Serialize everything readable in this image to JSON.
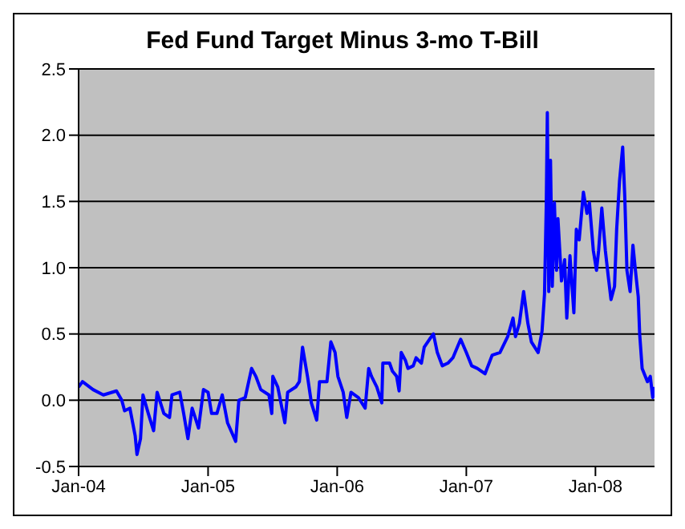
{
  "chart_data": {
    "type": "line",
    "title": "Fed Fund Target Minus 3-mo T-Bill",
    "x": [
      "2004-01-01",
      "2004-01-12",
      "2004-02-11",
      "2004-03-11",
      "2004-04-17",
      "2004-05-02",
      "2004-05-10",
      "2004-05-25",
      "2004-06-09",
      "2004-06-14",
      "2004-06-24",
      "2004-07-01",
      "2004-07-16",
      "2004-07-31",
      "2004-08-10",
      "2004-08-29",
      "2004-09-14",
      "2004-09-21",
      "2004-10-13",
      "2004-10-24",
      "2004-11-05",
      "2004-11-17",
      "2004-12-05",
      "2004-12-19",
      "2005-01-01",
      "2005-01-11",
      "2005-01-26",
      "2005-02-10",
      "2005-02-25",
      "2005-03-20",
      "2005-03-29",
      "2005-04-16",
      "2005-05-04",
      "2005-05-16",
      "2005-05-30",
      "2005-06-22",
      "2005-06-30",
      "2005-07-03",
      "2005-07-17",
      "2005-08-06",
      "2005-08-14",
      "2005-09-06",
      "2005-09-16",
      "2005-09-25",
      "2005-10-09",
      "2005-10-20",
      "2005-11-04",
      "2005-11-12",
      "2005-12-03",
      "2005-12-14",
      "2005-12-26",
      "2006-01-03",
      "2006-01-18",
      "2006-01-28",
      "2006-02-09",
      "2006-03-02",
      "2006-03-21",
      "2006-03-31",
      "2006-04-08",
      "2006-04-23",
      "2006-05-07",
      "2006-05-10",
      "2006-05-29",
      "2006-06-06",
      "2006-06-18",
      "2006-06-25",
      "2006-07-01",
      "2006-07-13",
      "2006-07-20",
      "2006-08-04",
      "2006-08-12",
      "2006-08-27",
      "2006-09-04",
      "2006-09-19",
      "2006-09-30",
      "2006-10-11",
      "2006-10-25",
      "2006-11-10",
      "2006-11-24",
      "2006-12-16",
      "2007-01-01",
      "2007-01-16",
      "2007-02-01",
      "2007-02-23",
      "2007-03-15",
      "2007-04-06",
      "2007-04-28",
      "2007-05-13",
      "2007-05-20",
      "2007-05-31",
      "2007-06-12",
      "2007-06-24",
      "2007-07-04",
      "2007-07-23",
      "2007-08-03",
      "2007-08-10",
      "2007-08-15",
      "2007-08-18",
      "2007-08-22",
      "2007-08-27",
      "2007-09-01",
      "2007-09-07",
      "2007-09-13",
      "2007-09-17",
      "2007-09-27",
      "2007-10-06",
      "2007-10-12",
      "2007-10-21",
      "2007-11-01",
      "2007-11-08",
      "2007-11-16",
      "2007-11-28",
      "2007-12-08",
      "2007-12-15",
      "2007-12-26",
      "2008-01-04",
      "2008-01-10",
      "2008-01-19",
      "2008-01-29",
      "2008-02-06",
      "2008-02-14",
      "2008-02-24",
      "2008-03-01",
      "2008-03-09",
      "2008-03-18",
      "2008-03-24",
      "2008-03-30",
      "2008-04-08",
      "2008-04-16",
      "2008-04-23",
      "2008-05-01",
      "2008-05-05",
      "2008-05-12",
      "2008-05-27",
      "2008-06-04",
      "2008-06-11",
      "2008-06-16"
    ],
    "series": [
      {
        "color": "#0000ff",
        "values": [
          0.1,
          0.14,
          0.08,
          0.04,
          0.07,
          0.0,
          -0.08,
          -0.06,
          -0.27,
          -0.41,
          -0.29,
          0.04,
          -0.1,
          -0.23,
          0.06,
          -0.1,
          -0.13,
          0.04,
          0.06,
          -0.1,
          -0.29,
          -0.06,
          -0.21,
          0.08,
          0.06,
          -0.1,
          -0.1,
          0.04,
          -0.17,
          -0.31,
          0.0,
          0.02,
          0.24,
          0.18,
          0.08,
          0.04,
          -0.1,
          0.18,
          0.1,
          -0.17,
          0.06,
          0.1,
          0.14,
          0.4,
          0.18,
          -0.02,
          -0.15,
          0.14,
          0.14,
          0.44,
          0.36,
          0.18,
          0.06,
          -0.13,
          0.06,
          0.02,
          -0.06,
          0.24,
          0.18,
          0.1,
          -0.02,
          0.28,
          0.28,
          0.22,
          0.18,
          0.07,
          0.36,
          0.3,
          0.24,
          0.26,
          0.32,
          0.28,
          0.4,
          0.46,
          0.5,
          0.36,
          0.26,
          0.28,
          0.32,
          0.46,
          0.36,
          0.26,
          0.24,
          0.2,
          0.34,
          0.36,
          0.48,
          0.62,
          0.48,
          0.58,
          0.82,
          0.58,
          0.44,
          0.36,
          0.52,
          0.8,
          1.47,
          2.17,
          0.82,
          1.81,
          0.86,
          1.49,
          0.98,
          1.37,
          0.9,
          1.06,
          0.62,
          1.09,
          0.66,
          1.29,
          1.21,
          1.57,
          1.41,
          1.49,
          1.13,
          0.98,
          1.13,
          1.45,
          1.13,
          0.94,
          0.76,
          0.86,
          1.29,
          1.65,
          1.91,
          1.53,
          0.98,
          0.82,
          1.17,
          0.98,
          0.78,
          0.5,
          0.24,
          0.14,
          0.18,
          0.02,
          0.1
        ]
      }
    ],
    "xlim": [
      "2004-01-01",
      "2008-06-16"
    ],
    "xticks": [
      {
        "value": "2004-01-01",
        "label": "Jan-04"
      },
      {
        "value": "2005-01-01",
        "label": "Jan-05"
      },
      {
        "value": "2006-01-01",
        "label": "Jan-06"
      },
      {
        "value": "2007-01-01",
        "label": "Jan-07"
      },
      {
        "value": "2008-01-01",
        "label": "Jan-08"
      }
    ],
    "ylim": [
      -0.5,
      2.5
    ],
    "yticks": [
      {
        "value": -0.5,
        "label": "-0.5"
      },
      {
        "value": 0,
        "label": "0.0"
      },
      {
        "value": 0.5,
        "label": "0.5"
      },
      {
        "value": 1,
        "label": "1.0"
      },
      {
        "value": 1.5,
        "label": "1.5"
      },
      {
        "value": 2,
        "label": "2.0"
      },
      {
        "value": 2.5,
        "label": "2.5"
      }
    ],
    "grid": "y",
    "legend": false,
    "marker": "none",
    "line_style": "solid"
  }
}
